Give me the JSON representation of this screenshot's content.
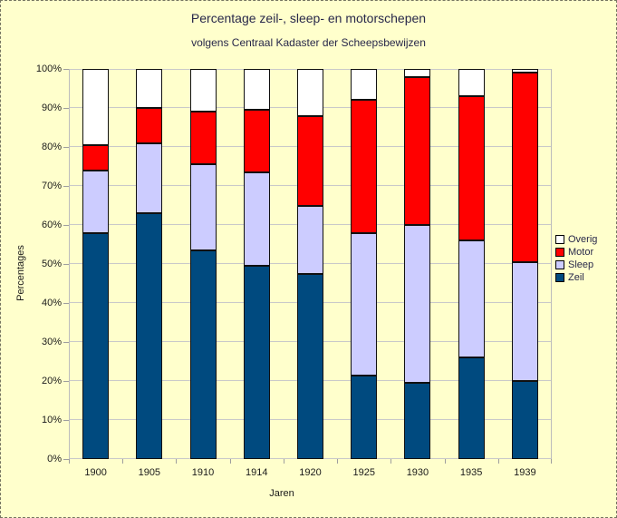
{
  "window": {
    "background_color": "#FFFFCC",
    "border_color": "#75756_0_dashed",
    "text_color": "#28284A"
  },
  "chart_data": {
    "type": "bar",
    "stacked": true,
    "title": "Percentage zeil-, sleep- en motorschepen",
    "subtitle": "volgens Centraal Kadaster der Scheepsbewijzen",
    "xlabel": "Jaren",
    "ylabel": "Percentages",
    "categories": [
      "1900",
      "1905",
      "1910",
      "1914",
      "1920",
      "1925",
      "1930",
      "1935",
      "1939"
    ],
    "series": [
      {
        "name": "Zeil",
        "color": "#004A7F",
        "values": [
          58,
          63,
          53.5,
          49.5,
          47.5,
          21.5,
          19.5,
          26,
          20
        ]
      },
      {
        "name": "Sleep",
        "color": "#CCCCFF",
        "values": [
          16,
          18,
          22,
          24,
          17.5,
          36.5,
          40.5,
          30,
          30.5
        ]
      },
      {
        "name": "Motor",
        "color": "#FF0000",
        "values": [
          6.5,
          9,
          13.5,
          16,
          23,
          34,
          38,
          37,
          48.5
        ]
      },
      {
        "name": "Overig",
        "color": "#FFFFFF",
        "values": [
          19.5,
          10,
          11,
          10.5,
          12,
          8,
          2,
          7,
          1
        ]
      }
    ],
    "legend": [
      "Overig",
      "Motor",
      "Sleep",
      "Zeil"
    ],
    "legend_position": "right",
    "ylim": [
      0,
      100
    ],
    "ytick_step": 10,
    "ytick_labels": [
      "0%",
      "10%",
      "20%",
      "30%",
      "40%",
      "50%",
      "60%",
      "70%",
      "80%",
      "90%",
      "100%"
    ],
    "grid": true,
    "gridline_color": "#C9C9C9",
    "bar_border_color": "#101010"
  }
}
